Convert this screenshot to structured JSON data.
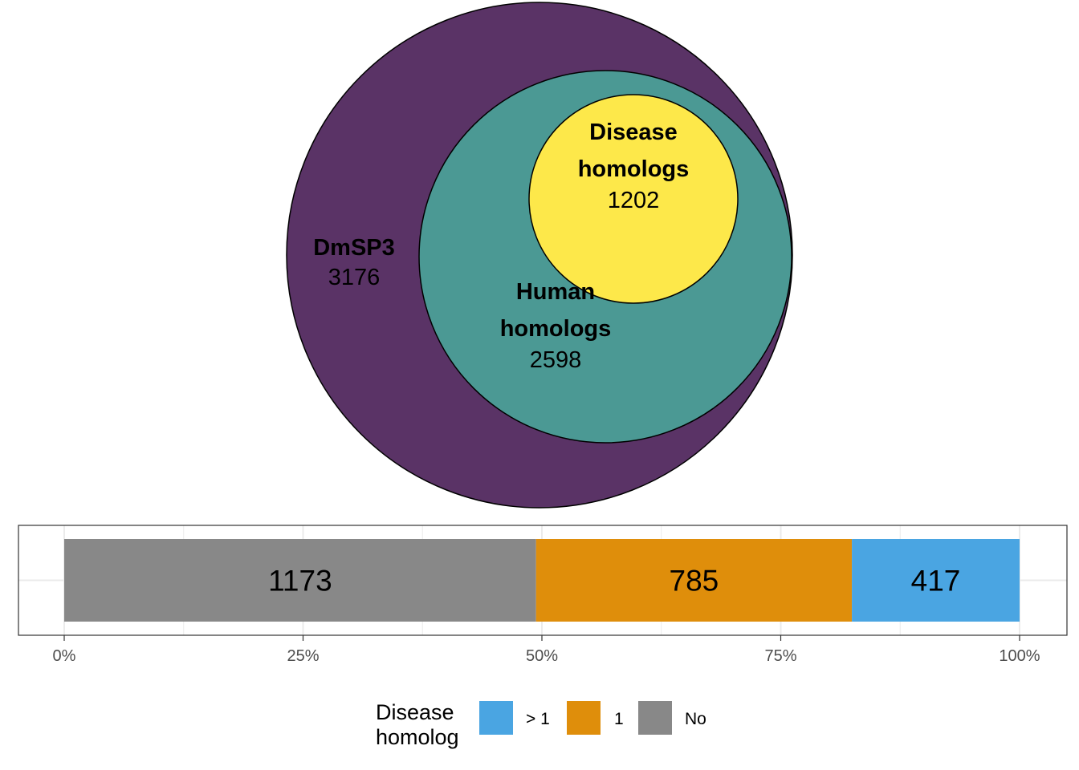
{
  "colors": {
    "dmsp3": "#5A3366",
    "human": "#4B9994",
    "disease": "#FDE84A",
    "more_than_one": "#4AA5E2",
    "one": "#DF8E0B",
    "no": "#888888",
    "grid": "#EBEBEB",
    "panel_border": "#333333",
    "tick_text": "#4D4D4D"
  },
  "chart_data": [
    {
      "type": "venn",
      "sets": [
        {
          "name": "DmSP3",
          "title_lines": [
            "DmSP3"
          ],
          "count": 3176,
          "count_label": "3176"
        },
        {
          "name": "Human homologs",
          "title_lines": [
            "Human",
            "homologs"
          ],
          "count": 2598,
          "count_label": "2598"
        },
        {
          "name": "Disease homologs",
          "title_lines": [
            "Disease",
            "homologs"
          ],
          "count": 1202,
          "count_label": "1202"
        }
      ],
      "relationship": "nested"
    },
    {
      "type": "bar",
      "orientation": "horizontal",
      "stacked": true,
      "normalized": true,
      "segments": [
        {
          "name": "No",
          "value": 1173,
          "label": "1173"
        },
        {
          "name": "1",
          "value": 785,
          "label": "785"
        },
        {
          "name": "> 1",
          "value": 417,
          "label": "417"
        }
      ],
      "xlim": [
        0,
        1
      ],
      "xticks": [
        {
          "value": 0,
          "label": "0%"
        },
        {
          "value": 0.25,
          "label": "25%"
        },
        {
          "value": 0.5,
          "label": "50%"
        },
        {
          "value": 0.75,
          "label": "75%"
        },
        {
          "value": 1,
          "label": "100%"
        }
      ],
      "legend": {
        "title_lines": [
          "Disease",
          "homolog"
        ],
        "position": "bottom",
        "entries": [
          {
            "label": "> 1",
            "key": "more_than_one"
          },
          {
            "label": "1",
            "key": "one"
          },
          {
            "label": "No",
            "key": "no"
          }
        ]
      }
    }
  ]
}
